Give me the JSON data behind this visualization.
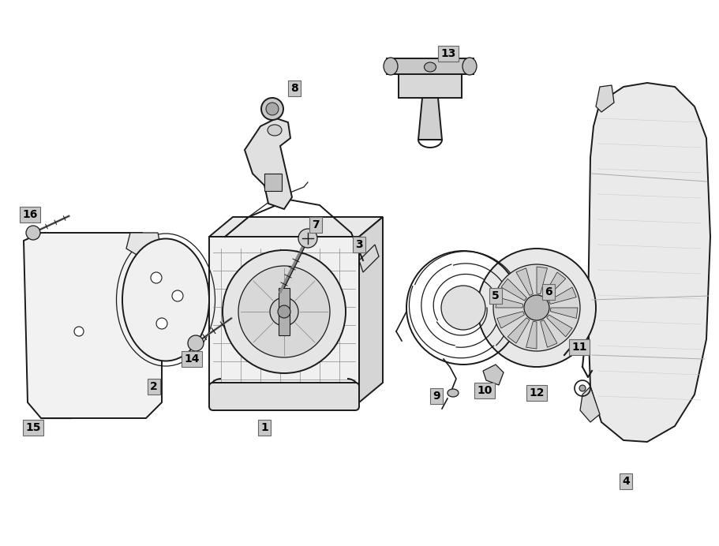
{
  "background_color": "#ffffff",
  "line_color": "#1a1a1a",
  "label_bg": "#c8c8c8",
  "label_text": "#000000",
  "figsize": [
    9.12,
    6.92
  ],
  "dpi": 100,
  "label_fontsize": 10
}
